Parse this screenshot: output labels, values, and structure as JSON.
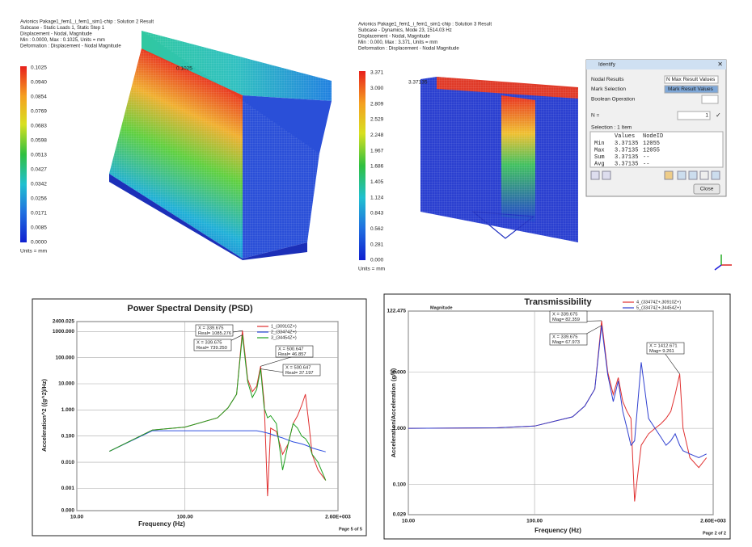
{
  "fem_views": [
    {
      "lines": [
        "Avionics Pakage1_fem1_i_fem1_sim1-chip : Solution 2 Result",
        "Subcase - Static Loads 1, Static Step 1",
        "Displacement - Nodal, Magnitude",
        "Min : 0.0000, Max : 0.1025, Units = mm",
        "Deformation : Displacement - Nodal Magnitude"
      ],
      "legend": [
        "0.1025",
        "0.0940",
        "0.0854",
        "0.0769",
        "0.0683",
        "0.0598",
        "0.0513",
        "0.0427",
        "0.0342",
        "0.0256",
        "0.0171",
        "0.0085",
        "0.0000"
      ],
      "units": "Units = mm",
      "probe": "0.1025"
    },
    {
      "lines": [
        "Avionics Pakage1_fem1_i_fem1_sim1-chip : Solution 3 Result",
        "Subcase - Dynamics, Mode 23, 1514.03 Hz",
        "Displacement - Nodal, Magnitude",
        "Min : 0.000, Max : 3.371, Units = mm",
        "Deformation : Displacement - Nodal Magnitude"
      ],
      "legend": [
        "3.371",
        "3.090",
        "2.809",
        "2.529",
        "2.248",
        "1.967",
        "1.686",
        "1.405",
        "1.124",
        "0.843",
        "0.562",
        "0.281",
        "0.000"
      ],
      "units": "Units = mm",
      "probe": "3.37135"
    }
  ],
  "identify": {
    "title": "Identify",
    "rows": [
      {
        "label": "Nodal Results",
        "value": "N Max Result Values"
      },
      {
        "label": "Mark Selection",
        "value": "Mark Result Values"
      },
      {
        "label": "Boolean Operation"
      }
    ],
    "n_label": "N =",
    "n_value": "1",
    "selection": "Selection : 1 Item",
    "table_header": [
      "Values",
      "NodeID"
    ],
    "table": [
      [
        "Min",
        "3.37135",
        "12055"
      ],
      [
        "Max",
        "3.37135",
        "12055"
      ],
      [
        "Sum",
        "3.37135",
        "--"
      ],
      [
        "Avg",
        "3.37135",
        "--"
      ]
    ],
    "close": "Close"
  },
  "chart_data": [
    {
      "type": "line",
      "title": "Power Spectral Density (PSD)",
      "x_label": "Frequency (Hz)",
      "y_label": "Acceleration^2 ((g^2)/Hz)",
      "log_x": true,
      "log_y": true,
      "grid": true,
      "page": "Page 5 of 5",
      "xlim": [
        10,
        2600
      ],
      "xticks": [
        {
          "value": 10,
          "label": "10.00"
        },
        {
          "value": 100,
          "label": "100.00"
        },
        {
          "value": 2600,
          "label": "2.60E+003"
        }
      ],
      "ylim": [
        0.00014,
        2400.025
      ],
      "yticks": [
        2400.025,
        {
          "value": 1000,
          "label": "1000.000"
        },
        {
          "value": 100,
          "label": "100.000"
        },
        {
          "value": 10,
          "label": "10.000"
        },
        {
          "value": 1,
          "label": "1.000"
        },
        {
          "value": 0.1,
          "label": "0.100"
        },
        {
          "value": 0.01,
          "label": "0.010"
        },
        {
          "value": 0.001,
          "label": "0.001"
        },
        {
          "value": 0.00014,
          "label": "0.000"
        }
      ],
      "x": [
        20,
        50,
        100,
        200,
        250,
        300,
        339.675,
        380,
        420,
        460,
        500.647,
        540,
        580,
        620,
        700,
        800,
        900,
        1000,
        1100,
        1200,
        1300,
        1400,
        1500,
        1700,
        2000
      ],
      "series": [
        {
          "name": "1_(30910Z+)",
          "color": "#e03030",
          "values": [
            0.026,
            0.17,
            0.22,
            0.5,
            1.2,
            4,
            1085.276,
            15,
            5,
            8,
            46.857,
            2,
            0.0005,
            0.2,
            0.15,
            0.02,
            0.05,
            0.3,
            0.6,
            1.5,
            4,
            0.3,
            0.02,
            0.005,
            0.002
          ]
        },
        {
          "name": "2_(33474Z+)",
          "color": "#3050e0",
          "values": [
            0.026,
            0.16,
            0.16,
            0.16,
            0.16,
            0.16,
            0.16,
            0.16,
            0.16,
            0.16,
            0.15,
            0.14,
            0.13,
            0.12,
            0.1,
            0.085,
            0.07,
            0.06,
            0.055,
            0.05,
            0.045,
            0.04,
            0.035,
            0.03,
            0.025
          ]
        },
        {
          "name": "3_(34454Z+)",
          "color": "#20a020",
          "values": [
            0.026,
            0.17,
            0.22,
            0.5,
            1.2,
            4,
            739.25,
            12,
            3,
            6,
            37.197,
            1.2,
            0.5,
            0.6,
            0.3,
            0.005,
            0.05,
            0.3,
            0.2,
            0.1,
            0.08,
            0.05,
            0.02,
            0.01,
            0.002
          ]
        }
      ],
      "annotations": [
        [
          "X = 339.675",
          "Real= 1085.276"
        ],
        [
          "X = 339.675",
          "Real= 739.250"
        ],
        [
          "X = 500.647",
          "Real= 46.857"
        ],
        [
          "X = 500.647",
          "Real= 37.197"
        ]
      ]
    },
    {
      "type": "line",
      "title": "Transmissibility",
      "x_label": "Frequency (Hz)",
      "y_label": "Acceleration/Acceleration (g/g)",
      "y_caption": "Magnitude",
      "log_x": true,
      "log_y": true,
      "grid": true,
      "page": "Page 2 of 2",
      "xlim": [
        10,
        2600
      ],
      "xticks": [
        {
          "value": 10,
          "label": "10.00"
        },
        {
          "value": 100,
          "label": "100.00"
        },
        {
          "value": 2600,
          "label": "2.60E+003"
        }
      ],
      "ylim": [
        0.029,
        122.475
      ],
      "yticks": [
        122.475,
        {
          "value": 10,
          "label": "10.000"
        },
        {
          "value": 1,
          "label": "1.000"
        },
        {
          "value": 0.1,
          "label": "0.100"
        },
        0.029
      ],
      "x": [
        10,
        50,
        100,
        200,
        250,
        300,
        339.675,
        380,
        420,
        460,
        500,
        540,
        580,
        620,
        700,
        800,
        900,
        1000,
        1100,
        1200,
        1300,
        1412.671,
        1500,
        1700,
        2000,
        2300
      ],
      "series": [
        {
          "name": "4_(33474Z+,30910Z+)",
          "color": "#e03030",
          "values": [
            1,
            1.02,
            1.1,
            1.6,
            2.5,
            5,
            82.359,
            10,
            4,
            8,
            3,
            2,
            1.5,
            0.05,
            0.5,
            0.8,
            1,
            1.2,
            1.5,
            2,
            4,
            9.261,
            1,
            0.3,
            0.2,
            0.3
          ]
        },
        {
          "name": "5_(33474Z+,34454Z+)",
          "color": "#3040d0",
          "values": [
            1,
            1.02,
            1.1,
            1.6,
            2.5,
            5,
            67.973,
            9,
            3,
            7,
            2,
            1,
            0.5,
            0.6,
            15,
            1.5,
            1,
            0.7,
            0.5,
            0.6,
            0.8,
            0.5,
            0.4,
            0.35,
            0.3,
            0.35
          ]
        }
      ],
      "annotations": [
        [
          "X = 339.675",
          "Mag= 82.359"
        ],
        [
          "X = 339.675",
          "Mag= 67.973"
        ],
        [
          "X = 1412.671",
          "Mag= 9.261"
        ]
      ]
    }
  ]
}
